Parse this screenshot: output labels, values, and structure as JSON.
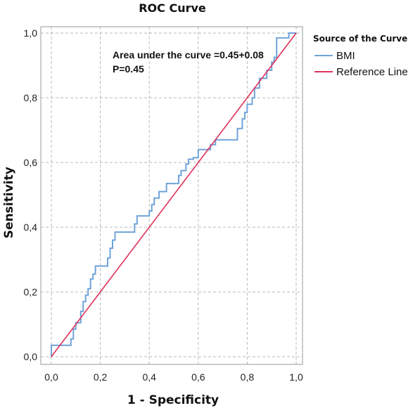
{
  "chart_data": {
    "type": "line",
    "title": "ROC Curve",
    "xlabel": "1 - Specificity",
    "ylabel": "Sensitivity",
    "xlim": [
      0,
      1
    ],
    "ylim": [
      0,
      1
    ],
    "xticks": [
      "0,0",
      "0,2",
      "0,4",
      "0,6",
      "0,8",
      "1,0"
    ],
    "yticks": [
      "0,0",
      "0,2",
      "0,4",
      "0,6",
      "0,8",
      "1,0"
    ],
    "grid": true,
    "legend": {
      "title": "Source of the Curve",
      "placement": "right"
    },
    "annotation": {
      "line1": "Area under the curve =0.45+0.08",
      "line2": "P=0.45"
    },
    "series": [
      {
        "name": "BMI",
        "color": "#6fa3d8",
        "x": [
          0,
          0,
          0.08,
          0.08,
          0.09,
          0.09,
          0.1,
          0.1,
          0.12,
          0.12,
          0.13,
          0.13,
          0.14,
          0.14,
          0.15,
          0.15,
          0.16,
          0.16,
          0.17,
          0.17,
          0.18,
          0.18,
          0.23,
          0.23,
          0.24,
          0.24,
          0.25,
          0.25,
          0.26,
          0.26,
          0.34,
          0.34,
          0.35,
          0.35,
          0.4,
          0.4,
          0.41,
          0.41,
          0.42,
          0.42,
          0.44,
          0.44,
          0.47,
          0.47,
          0.52,
          0.52,
          0.53,
          0.53,
          0.55,
          0.55,
          0.56,
          0.56,
          0.58,
          0.58,
          0.6,
          0.6,
          0.65,
          0.65,
          0.67,
          0.67,
          0.68,
          0.68,
          0.76,
          0.76,
          0.78,
          0.78,
          0.79,
          0.79,
          0.8,
          0.8,
          0.82,
          0.82,
          0.83,
          0.83,
          0.85,
          0.85,
          0.88,
          0.88,
          0.9,
          0.9,
          0.91,
          0.91,
          0.92,
          0.92,
          0.97,
          0.97,
          1.0
        ],
        "y": [
          0,
          0.035,
          0.035,
          0.055,
          0.055,
          0.085,
          0.085,
          0.105,
          0.105,
          0.14,
          0.14,
          0.17,
          0.17,
          0.19,
          0.19,
          0.21,
          0.21,
          0.24,
          0.24,
          0.255,
          0.255,
          0.28,
          0.28,
          0.305,
          0.305,
          0.335,
          0.335,
          0.36,
          0.36,
          0.385,
          0.385,
          0.41,
          0.41,
          0.435,
          0.435,
          0.45,
          0.45,
          0.47,
          0.47,
          0.49,
          0.49,
          0.51,
          0.51,
          0.535,
          0.535,
          0.56,
          0.56,
          0.575,
          0.575,
          0.595,
          0.595,
          0.61,
          0.61,
          0.615,
          0.615,
          0.64,
          0.64,
          0.655,
          0.655,
          0.67,
          0.67,
          0.67,
          0.67,
          0.705,
          0.705,
          0.735,
          0.735,
          0.755,
          0.755,
          0.78,
          0.78,
          0.8,
          0.8,
          0.83,
          0.83,
          0.86,
          0.86,
          0.885,
          0.885,
          0.91,
          0.91,
          0.925,
          0.925,
          0.985,
          0.985,
          1.0,
          1.0
        ]
      },
      {
        "name": "Reference Line",
        "color": "#e0305a",
        "x": [
          0,
          1
        ],
        "y": [
          0,
          1
        ]
      }
    ]
  }
}
